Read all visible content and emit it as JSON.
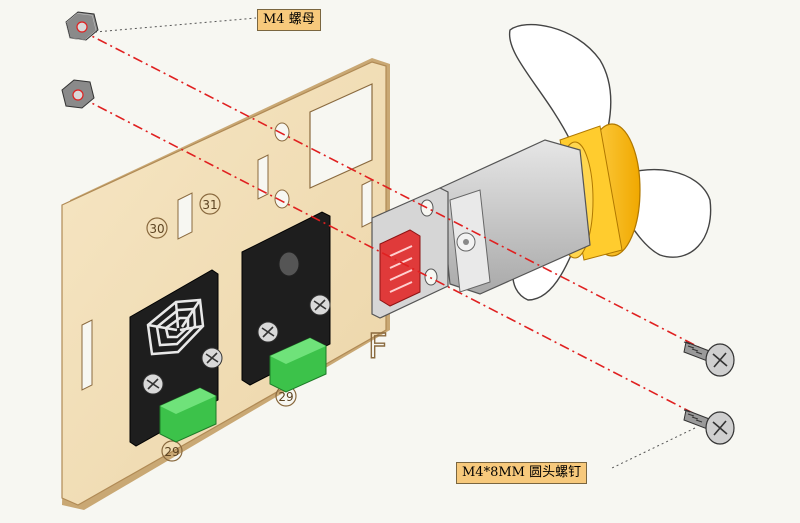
{
  "callouts": {
    "nut_label": "M4 螺母",
    "screw_label": "M4*8MM 圆头螺钉"
  },
  "board": {
    "marks": [
      "30",
      "31",
      "29",
      "29",
      "F"
    ]
  },
  "colors": {
    "background": "#f7f7f2",
    "wood": "#f1dfb8",
    "wood_edge": "#c9a874",
    "module_board": "#1e1e1e",
    "connector_red": "#e03a3a",
    "connector_green": "#3cc24a",
    "motor_silver": "#cfcfcf",
    "fan_hub_yellow": "#ffc21a",
    "guide_line_red": "#e02020",
    "callout_fill": "#f7c97c"
  },
  "icons": [
    "hex-nut-icon",
    "round-head-screw-icon",
    "buzzer-module-icon",
    "led-module-icon",
    "fan-motor-icon"
  ]
}
